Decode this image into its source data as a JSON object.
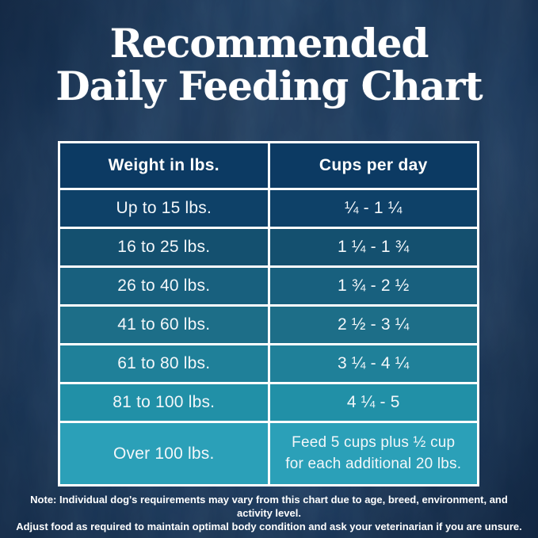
{
  "title": {
    "line1": "Recommended",
    "line2": "Daily Feeding Chart"
  },
  "table": {
    "col_headers": [
      "Weight in lbs.",
      "Cups per day"
    ],
    "rows": [
      {
        "weight": "Up to 15 lbs.",
        "cups": "¼ - 1 ¼",
        "color": "#0e4168"
      },
      {
        "weight": "16 to 25 lbs.",
        "cups": "1 ¼ - 1 ¾",
        "color": "#14506f"
      },
      {
        "weight": "26 to 40 lbs.",
        "cups": "1 ¾ - 2 ½",
        "color": "#18607e"
      },
      {
        "weight": "41 to 60 lbs.",
        "cups": "2 ½ - 3 ¼",
        "color": "#1d6e88"
      },
      {
        "weight": "61 to 80 lbs.",
        "cups": "3 ¼ - 4 ¼",
        "color": "#1f8099"
      },
      {
        "weight": "81 to 100 lbs.",
        "cups": "4 ¼ - 5",
        "color": "#2190a7"
      },
      {
        "weight": "Over 100 lbs.",
        "cups": "Feed 5 cups plus ½ cup for each additional 20 lbs.",
        "color": "#2ba0b8"
      }
    ]
  },
  "note": {
    "line1": "Note: Individual dog's requirements may vary from this chart due to age, breed, environment, and activity level.",
    "line2": "Adjust food as required to maintain optimal body condition and ask your veterinarian if you are unsure."
  },
  "colors": {
    "page_bg": "#1b3e66",
    "header_bg": "#0c3a63",
    "border": "#ffffff",
    "text": "#ffffff"
  },
  "chart_data": {
    "type": "table",
    "title": "Recommended Daily Feeding Chart",
    "columns": [
      "Weight in lbs.",
      "Cups per day"
    ],
    "rows": [
      [
        "Up to 15 lbs.",
        "¼ - 1 ¼"
      ],
      [
        "16 to 25 lbs.",
        "1 ¼ - 1 ¾"
      ],
      [
        "26 to 40 lbs.",
        "1 ¾ - 2 ½"
      ],
      [
        "41 to 60 lbs.",
        "2 ½ - 3 ¼"
      ],
      [
        "61 to 80 lbs.",
        "3 ¼ - 4 ¼"
      ],
      [
        "81 to 100 lbs.",
        "4 ¼ - 5"
      ],
      [
        "Over 100 lbs.",
        "Feed 5 cups plus ½ cup for each additional 20 lbs."
      ]
    ],
    "note": "Individual dog's requirements may vary from this chart due to age, breed, environment, and activity level. Adjust food as required to maintain optimal body condition and ask your veterinarian if you are unsure."
  }
}
